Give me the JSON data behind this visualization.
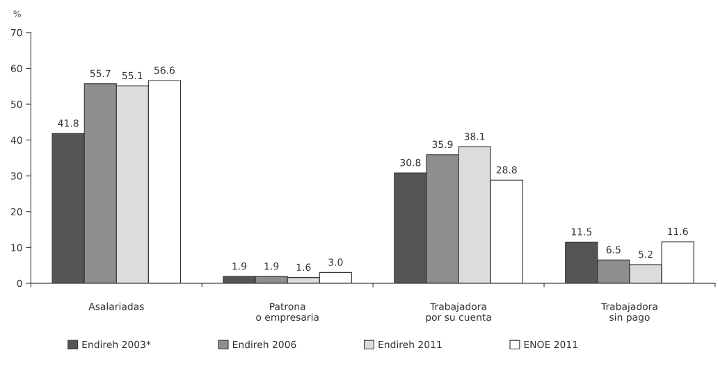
{
  "chart_data": {
    "type": "bar",
    "ylabel": "%",
    "categories": [
      "Asalariadas",
      "Patrona\no empresaria",
      "Trabajadora\npor su cuenta",
      "Trabajadora\nsin pago"
    ],
    "series": [
      {
        "name": "Endireh 2003*",
        "color": "#555555",
        "values": [
          41.8,
          1.9,
          30.8,
          11.5
        ],
        "value_labels": [
          "41.8",
          "1.9",
          "30.8",
          "11.5"
        ]
      },
      {
        "name": "Endireh 2006",
        "color": "#8e8e8e",
        "values": [
          55.7,
          1.9,
          35.9,
          6.5
        ],
        "value_labels": [
          "55.7",
          "1.9",
          "35.9",
          "6.5"
        ]
      },
      {
        "name": "Endireh 2011",
        "color": "#dcdcdc",
        "values": [
          55.1,
          1.6,
          38.1,
          5.2
        ],
        "value_labels": [
          "55.1",
          "1.6",
          "38.1",
          "5.2"
        ]
      },
      {
        "name": "ENOE 2011",
        "color": "#ffffff",
        "values": [
          56.6,
          3.0,
          28.8,
          11.6
        ],
        "value_labels": [
          "56.6",
          "3.0",
          "28.8",
          "11.6"
        ]
      }
    ],
    "ylim": [
      0,
      70
    ],
    "yticks": [
      0,
      10,
      20,
      30,
      40,
      50,
      60,
      70
    ],
    "grid": false,
    "legend": "bottom"
  }
}
